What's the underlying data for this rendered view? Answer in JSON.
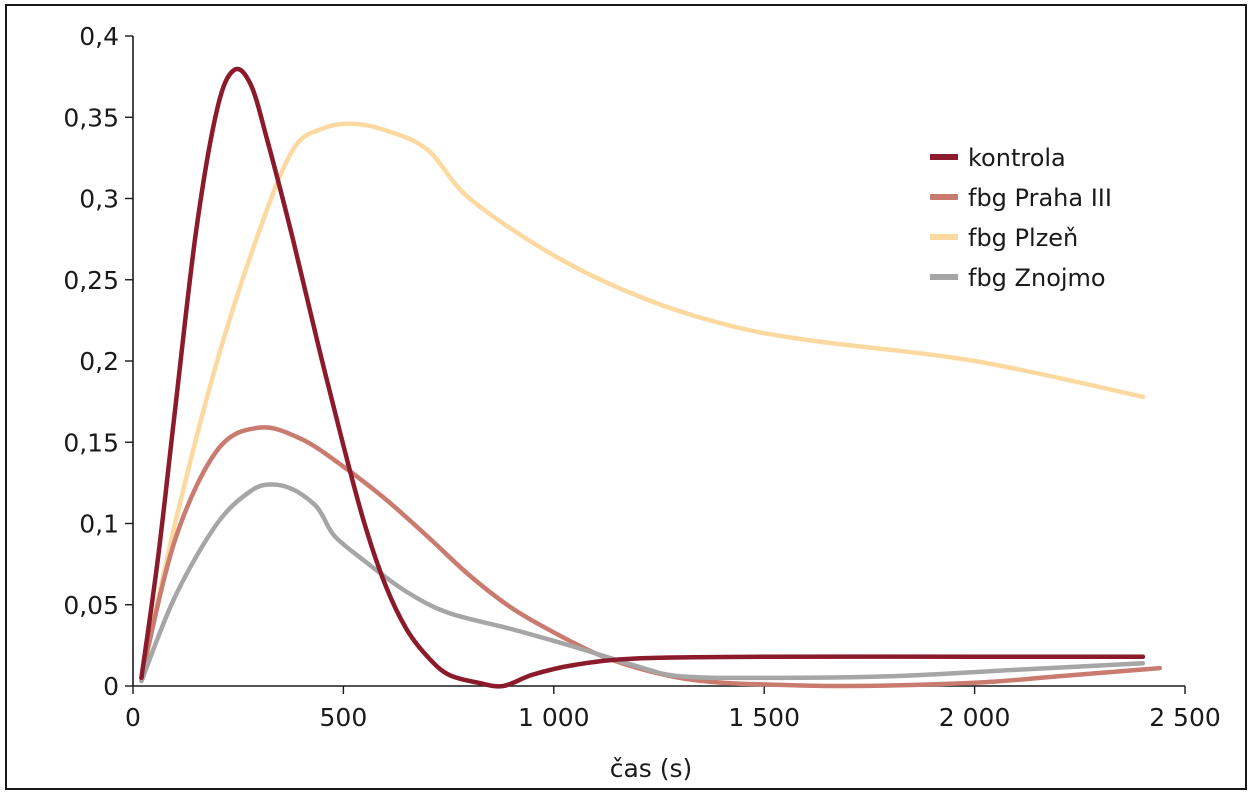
{
  "chart_data": {
    "type": "line",
    "title": "",
    "xlabel": "čas (s)",
    "ylabel": "",
    "xlim": [
      0,
      2500
    ],
    "ylim": [
      0,
      0.4
    ],
    "x_ticks": [
      {
        "value": 0,
        "label": "0"
      },
      {
        "value": 500,
        "label": "500"
      },
      {
        "value": 1000,
        "label": "1 000"
      },
      {
        "value": 1500,
        "label": "1 500"
      },
      {
        "value": 2000,
        "label": "2 000"
      },
      {
        "value": 2500,
        "label": "2 500"
      }
    ],
    "y_ticks": [
      {
        "value": 0,
        "label": "0"
      },
      {
        "value": 0.05,
        "label": "0,05"
      },
      {
        "value": 0.1,
        "label": "0,1"
      },
      {
        "value": 0.15,
        "label": "0,15"
      },
      {
        "value": 0.2,
        "label": "0,2"
      },
      {
        "value": 0.25,
        "label": "0,25"
      },
      {
        "value": 0.3,
        "label": "0,3"
      },
      {
        "value": 0.35,
        "label": "0,35"
      },
      {
        "value": 0.4,
        "label": "0,4"
      }
    ],
    "grid": false,
    "legend_position": "top-right",
    "series": [
      {
        "name": "kontrola",
        "color": "#8b1a2b",
        "points": [
          [
            20,
            0.005
          ],
          [
            60,
            0.08
          ],
          [
            100,
            0.17
          ],
          [
            150,
            0.28
          ],
          [
            200,
            0.355
          ],
          [
            240,
            0.379
          ],
          [
            280,
            0.37
          ],
          [
            320,
            0.335
          ],
          [
            380,
            0.275
          ],
          [
            440,
            0.21
          ],
          [
            500,
            0.148
          ],
          [
            550,
            0.1
          ],
          [
            600,
            0.062
          ],
          [
            650,
            0.035
          ],
          [
            700,
            0.018
          ],
          [
            750,
            0.007
          ],
          [
            820,
            0.002
          ],
          [
            880,
            0.0
          ],
          [
            950,
            0.007
          ],
          [
            1050,
            0.013
          ],
          [
            1200,
            0.017
          ],
          [
            1500,
            0.018
          ],
          [
            2000,
            0.018
          ],
          [
            2400,
            0.018
          ]
        ]
      },
      {
        "name": "fbg Praha III",
        "color": "#c97b70",
        "points": [
          [
            20,
            0.005
          ],
          [
            100,
            0.09
          ],
          [
            200,
            0.145
          ],
          [
            300,
            0.159
          ],
          [
            400,
            0.152
          ],
          [
            500,
            0.135
          ],
          [
            600,
            0.115
          ],
          [
            700,
            0.092
          ],
          [
            800,
            0.068
          ],
          [
            900,
            0.048
          ],
          [
            1000,
            0.033
          ],
          [
            1100,
            0.02
          ],
          [
            1200,
            0.011
          ],
          [
            1300,
            0.005
          ],
          [
            1400,
            0.002
          ],
          [
            1500,
            0.001
          ],
          [
            1700,
            0.0
          ],
          [
            2000,
            0.002
          ],
          [
            2200,
            0.006
          ],
          [
            2440,
            0.011
          ]
        ]
      },
      {
        "name": "fbg Plzeň",
        "color": "#fbd9a0",
        "points": [
          [
            20,
            0.005
          ],
          [
            100,
            0.1
          ],
          [
            200,
            0.2
          ],
          [
            300,
            0.28
          ],
          [
            380,
            0.33
          ],
          [
            450,
            0.343
          ],
          [
            520,
            0.346
          ],
          [
            600,
            0.342
          ],
          [
            700,
            0.33
          ],
          [
            800,
            0.3
          ],
          [
            1000,
            0.265
          ],
          [
            1200,
            0.24
          ],
          [
            1400,
            0.223
          ],
          [
            1600,
            0.213
          ],
          [
            2000,
            0.2
          ],
          [
            2400,
            0.178
          ]
        ]
      },
      {
        "name": "fbg Znojmo",
        "color": "#a6a6a6",
        "points": [
          [
            20,
            0.003
          ],
          [
            100,
            0.055
          ],
          [
            200,
            0.1
          ],
          [
            280,
            0.12
          ],
          [
            330,
            0.124
          ],
          [
            380,
            0.121
          ],
          [
            430,
            0.112
          ],
          [
            450,
            0.105
          ],
          [
            480,
            0.092
          ],
          [
            550,
            0.077
          ],
          [
            650,
            0.058
          ],
          [
            750,
            0.045
          ],
          [
            900,
            0.035
          ],
          [
            1050,
            0.024
          ],
          [
            1200,
            0.012
          ],
          [
            1300,
            0.006
          ],
          [
            1500,
            0.005
          ],
          [
            1800,
            0.006
          ],
          [
            2100,
            0.01
          ],
          [
            2400,
            0.014
          ]
        ]
      }
    ]
  }
}
